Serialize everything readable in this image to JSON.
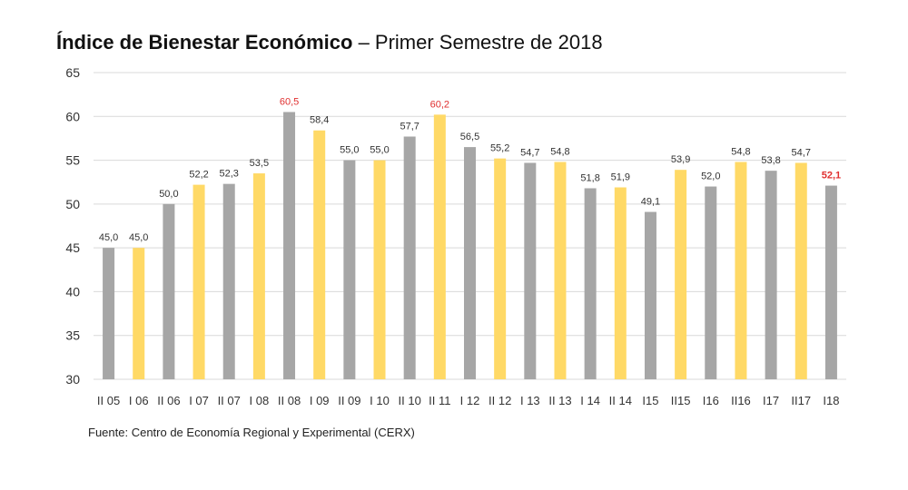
{
  "chart_data": {
    "type": "bar",
    "title": "Índice de Bienestar Económico",
    "subtitle": "– Primer Semestre de 2018",
    "source": "Fuente: Centro de Economía Regional y Experimental (CERX)",
    "categories": [
      "II 05",
      "I 06",
      "II 06",
      "I 07",
      "II 07",
      "I 08",
      "II 08",
      "I 09",
      "II 09",
      "I 10",
      "II 10",
      "II 11",
      "I 12",
      "II 12",
      "I 13",
      "II 13",
      "I 14",
      "II 14",
      "I15",
      "II15",
      "I16",
      "II16",
      "I17",
      "II17",
      "I18"
    ],
    "values": [
      45.0,
      45.0,
      50.0,
      52.2,
      52.3,
      53.5,
      60.5,
      58.4,
      55.0,
      55.0,
      57.7,
      60.2,
      56.5,
      55.2,
      54.7,
      54.8,
      51.8,
      51.9,
      49.1,
      53.9,
      52.0,
      54.8,
      53.8,
      54.7,
      52.1
    ],
    "data_labels": [
      "45,0",
      "45,0",
      "50,0",
      "52,2",
      "52,3",
      "53,5",
      "60,5",
      "58,4",
      "55,0",
      "55,0",
      "57,7",
      "60,2",
      "56,5",
      "55,2",
      "54,7",
      "54,8",
      "51,8",
      "51,9",
      "49,1",
      "53,9",
      "52,0",
      "54,8",
      "53,8",
      "54,7",
      "52,1"
    ],
    "highlighted_labels": [
      6,
      11,
      24
    ],
    "ylim": [
      30,
      65
    ],
    "yticks": [
      30,
      35,
      40,
      45,
      50,
      55,
      60,
      65
    ],
    "grid": true,
    "colors": {
      "gray": "#a6a6a6",
      "yellow": "#ffd966",
      "highlight": "#e03030",
      "grid": "#d9d9d9"
    }
  }
}
